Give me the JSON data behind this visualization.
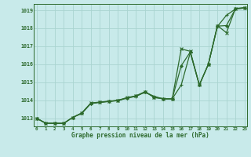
{
  "xlabel": "Graphe pression niveau de la mer (hPa)",
  "background_color": "#c8eaea",
  "grid_color": "#aad4d0",
  "line_color": "#2d6a2d",
  "x_ticks": [
    0,
    1,
    2,
    3,
    4,
    5,
    6,
    7,
    8,
    9,
    10,
    11,
    12,
    13,
    14,
    15,
    16,
    17,
    18,
    19,
    20,
    21,
    22,
    23
  ],
  "xlim": [
    -0.3,
    23.3
  ],
  "ylim": [
    1012.55,
    1019.35
  ],
  "yticks": [
    1013,
    1014,
    1015,
    1016,
    1017,
    1018,
    1019
  ],
  "line1_x": [
    0,
    1,
    2,
    3,
    4,
    5,
    6,
    7,
    8,
    9,
    10,
    11,
    12,
    13,
    14,
    15,
    16,
    17,
    18,
    19,
    20,
    21,
    22,
    23
  ],
  "line1_y": [
    1013.0,
    1012.73,
    1012.72,
    1012.72,
    1013.05,
    1013.27,
    1013.82,
    1013.88,
    1013.93,
    1013.98,
    1014.12,
    1014.22,
    1014.45,
    1014.22,
    1014.08,
    1014.08,
    1014.85,
    1016.65,
    1014.85,
    1016.0,
    1018.1,
    1018.72,
    1019.07,
    1019.12
  ],
  "line2_x": [
    0,
    1,
    2,
    3,
    4,
    5,
    6,
    7,
    8,
    9,
    10,
    11,
    12,
    13,
    14,
    15,
    16,
    17,
    18,
    19,
    20,
    21,
    22,
    23
  ],
  "line2_y": [
    1013.0,
    1012.73,
    1012.72,
    1012.72,
    1013.05,
    1013.3,
    1013.85,
    1013.9,
    1013.95,
    1014.0,
    1014.15,
    1014.25,
    1014.48,
    1014.15,
    1014.08,
    1014.08,
    1016.85,
    1016.72,
    1014.85,
    1016.0,
    1018.15,
    1017.75,
    1019.1,
    1019.15
  ],
  "line3_x": [
    0,
    1,
    2,
    3,
    4,
    5,
    6,
    7,
    8,
    9,
    10,
    11,
    12,
    13,
    14,
    15,
    16,
    17,
    18,
    19,
    20,
    21,
    22,
    23
  ],
  "line3_y": [
    1013.0,
    1012.73,
    1012.72,
    1012.72,
    1013.05,
    1013.28,
    1013.83,
    1013.89,
    1013.94,
    1013.99,
    1014.13,
    1014.23,
    1014.46,
    1014.18,
    1014.08,
    1014.08,
    1015.92,
    1016.68,
    1014.85,
    1016.0,
    1018.12,
    1018.15,
    1019.08,
    1019.13
  ]
}
